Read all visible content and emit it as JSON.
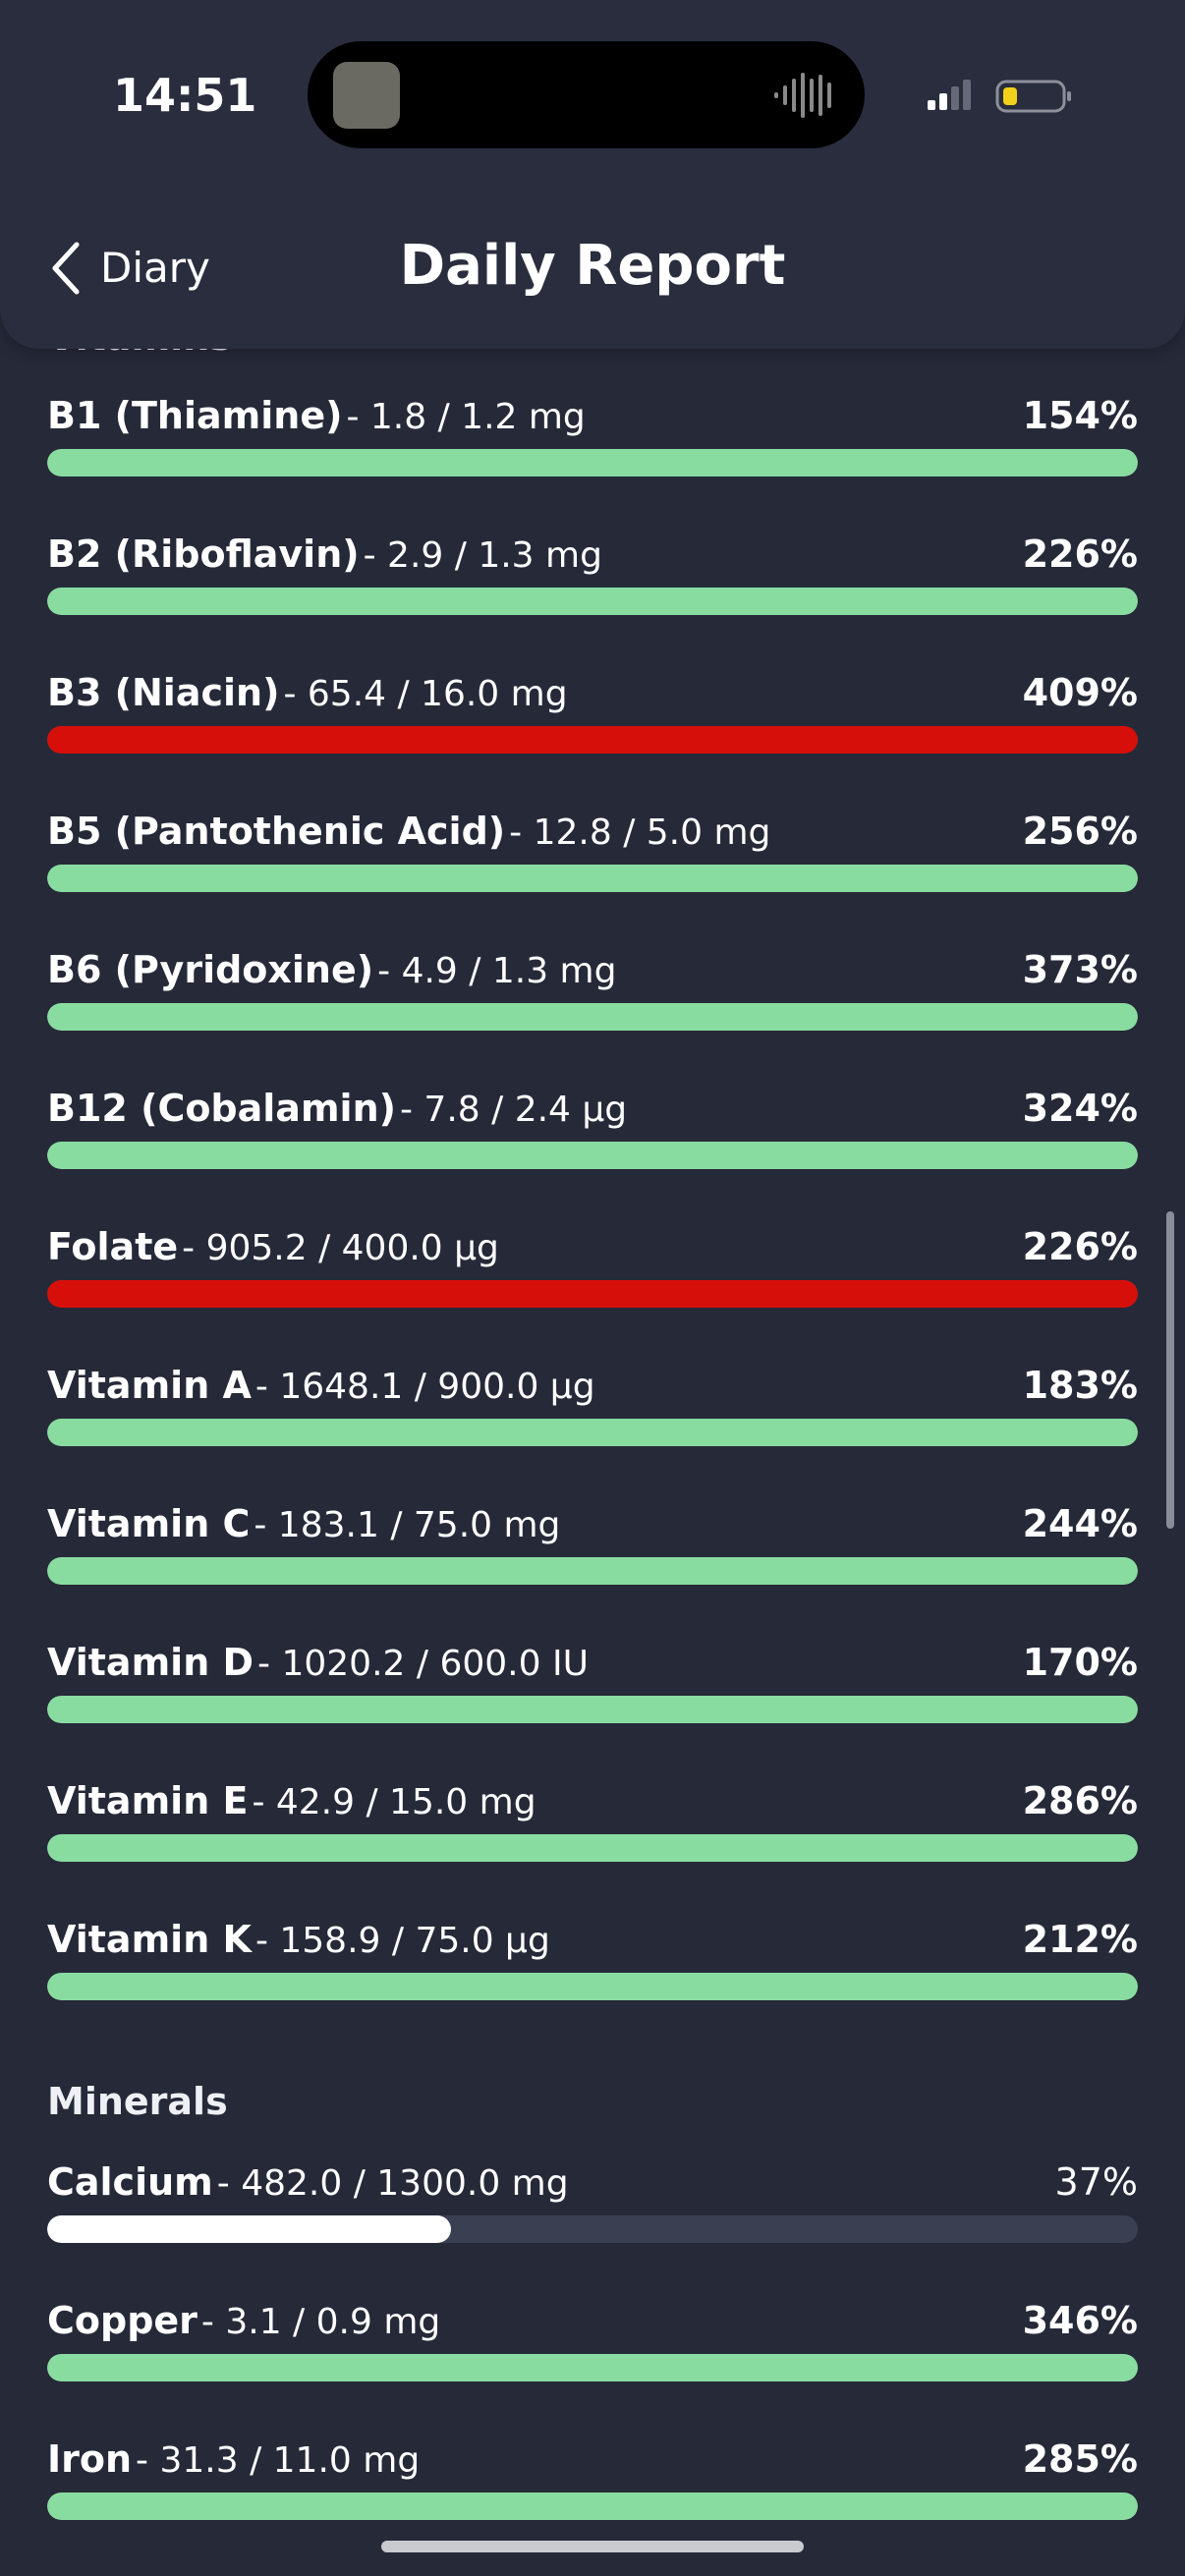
{
  "status_bar": {
    "time": "14:51"
  },
  "nav": {
    "back": "Diary",
    "title": "Daily Report"
  },
  "sections": [
    {
      "title": "Vitamins",
      "start": 343,
      "items": [
        {
          "name": "B1 (Thiamine)",
          "detail": "- 1.8 / 1.2 mg",
          "percent": "154%",
          "color": "#89dca0"
        },
        {
          "name": "B2 (Riboflavin)",
          "detail": "- 2.9 / 1.3 mg",
          "percent": "226%",
          "color": "#89dca0"
        },
        {
          "name": "B3 (Niacin)",
          "detail": "- 65.4 / 16.0 mg",
          "percent": "409%",
          "color": "#d70f0a"
        },
        {
          "name": "B5 (Pantothenic Acid)",
          "detail": "- 12.8 / 5.0 mg",
          "percent": "256%",
          "color": "#89dca0"
        },
        {
          "name": "B6 (Pyridoxine)",
          "detail": "- 4.9 / 1.3 mg",
          "percent": "373%",
          "color": "#89dca0"
        },
        {
          "name": "B12 (Cobalamin)",
          "detail": "- 7.8 / 2.4 µg",
          "percent": "324%",
          "color": "#89dca0"
        },
        {
          "name": "Folate",
          "detail": "- 905.2 / 400.0 µg",
          "percent": "226%",
          "color": "#d70f0a"
        },
        {
          "name": "Vitamin A",
          "detail": "- 1648.1 / 900.0 µg",
          "percent": "183%",
          "color": "#89dca0"
        },
        {
          "name": "Vitamin C",
          "detail": "- 183.1 / 75.0 mg",
          "percent": "244%",
          "color": "#89dca0"
        },
        {
          "name": "Vitamin D",
          "detail": "- 1020.2 / 600.0 IU",
          "percent": "170%",
          "color": "#89dca0"
        },
        {
          "name": "Vitamin E",
          "detail": "- 42.9 / 15.0 mg",
          "percent": "286%",
          "color": "#89dca0"
        },
        {
          "name": "Vitamin K",
          "detail": "- 158.9 / 75.0 µg",
          "percent": "212%",
          "color": "#89dca0"
        }
      ]
    },
    {
      "title": "Minerals",
      "start": 2139,
      "items": [
        {
          "name": "Calcium",
          "detail": "- 482.0 / 1300.0 mg",
          "percent": "37%",
          "color": "#ffffff"
        },
        {
          "name": "Copper",
          "detail": "- 3.1 / 0.9 mg",
          "percent": "346%",
          "color": "#89dca0"
        },
        {
          "name": "Iron",
          "detail": "- 31.3 / 11.0 mg",
          "percent": "285%",
          "color": "#89dca0"
        }
      ]
    }
  ]
}
